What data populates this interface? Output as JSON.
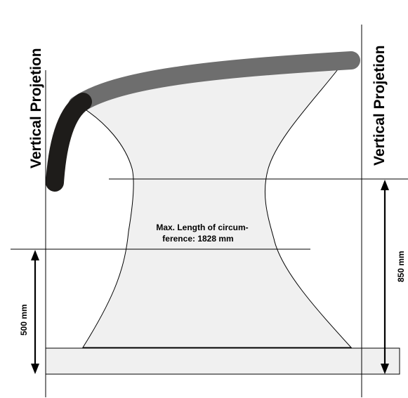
{
  "projection_left_label": "Vertical Projetion",
  "projection_right_label": "Vertical Projetion",
  "circumference_label_line1": "Max. Length of circum-",
  "circumference_label_line2": "ference: 1828 mm",
  "height_low_label": "500 mm",
  "height_high_label": "850 mm",
  "colors": {
    "body_fill": "#f0f0f0",
    "backrest_dark": "#1e1c1a",
    "backrest_grey": "#6e6e6e",
    "base_fill": "#f0f0f0",
    "stroke": "#000000"
  }
}
